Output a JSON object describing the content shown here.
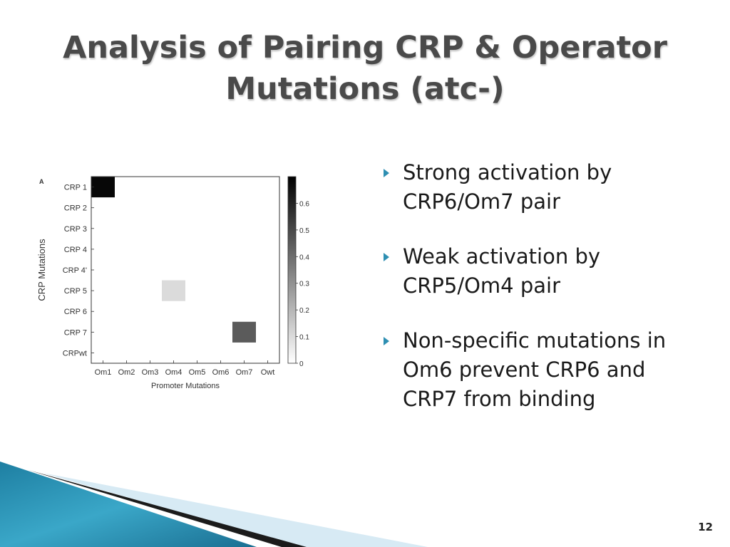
{
  "slide": {
    "title_line1": "Analysis of Pairing CRP & Operator",
    "title_line2": "Mutations (atc-)",
    "page_number": "12"
  },
  "bullets": [
    "Strong activation by CRP6/Om7 pair",
    "Weak activation by CRP5/Om4 pair",
    "Non-specific mutations in Om6 prevent CRP6 and CRP7 from binding"
  ],
  "colors": {
    "bullet": "#2e8fb2",
    "title": "#4a4a4a",
    "footer_teal": "#1f8fb0",
    "footer_light": "#d7eaf4"
  },
  "chart_data": {
    "type": "heatmap",
    "panel_label": "A",
    "xlabel": "Promoter Mutations",
    "ylabel": "CRP Mutations",
    "x_categories": [
      "Om1",
      "Om2",
      "Om3",
      "Om4",
      "Om5",
      "Om6",
      "Om7",
      "Owt"
    ],
    "y_categories": [
      "CRP 1",
      "CRP 2",
      "CRP 3",
      "CRP 4",
      "CRP 4'",
      "CRP 5",
      "CRP 6",
      "CRP 7",
      "CRPwt"
    ],
    "cells": [
      {
        "x": "Om1",
        "y": "CRP 1",
        "value": 0.68
      },
      {
        "x": "Om4",
        "y": "CRP 5",
        "value": 0.1
      },
      {
        "x": "Om7",
        "y": "CRP 7",
        "value": 0.45
      }
    ],
    "colorbar": {
      "min": 0,
      "max": 0.7,
      "ticks": [
        0,
        0.1,
        0.2,
        0.3,
        0.4,
        0.5,
        0.6
      ],
      "tick_labels": [
        "0",
        "0.1",
        "0.2",
        "0.3",
        "0.4",
        "0.5",
        "0.6"
      ],
      "colormap": "white-to-black"
    },
    "grid": false
  }
}
